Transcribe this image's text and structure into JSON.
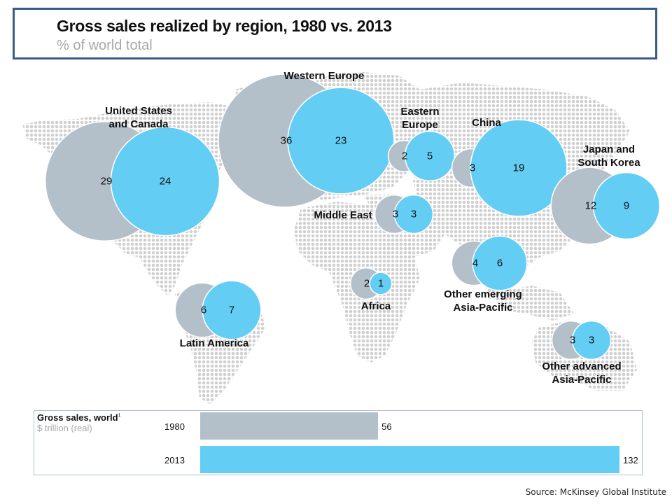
{
  "header": {
    "title": "Gross sales realized by region, 1980 vs. 2013",
    "subtitle": "% of world total"
  },
  "colors": {
    "year_1980": "#b3c0ca",
    "year_2013": "#64cdf4",
    "map_dots": "#d0d0d0",
    "title_border": "#3a5b8a"
  },
  "chart_data": [
    {
      "type": "bubble-map",
      "title": "Gross sales realized by region, 1980 vs. 2013",
      "subtitle": "% of world total",
      "series": [
        "1980",
        "2013"
      ],
      "regions": [
        {
          "name": "United States and Canada",
          "label_lines": [
            "United States",
            "and Canada"
          ],
          "v1980": 29,
          "v2013": 24
        },
        {
          "name": "Western Europe",
          "label_lines": [
            "Western Europe"
          ],
          "v1980": 36,
          "v2013": 23
        },
        {
          "name": "Eastern Europe",
          "label_lines": [
            "Eastern",
            "Europe"
          ],
          "v1980": 2,
          "v2013": 5
        },
        {
          "name": "China",
          "label_lines": [
            "China"
          ],
          "v1980": 3,
          "v2013": 19
        },
        {
          "name": "Japan and South Korea",
          "label_lines": [
            "Japan and",
            "South Korea"
          ],
          "v1980": 12,
          "v2013": 9
        },
        {
          "name": "Middle East",
          "label_lines": [
            "Middle East"
          ],
          "v1980": 3,
          "v2013": 3
        },
        {
          "name": "Latin America",
          "label_lines": [
            "Latin America"
          ],
          "v1980": 6,
          "v2013": 7
        },
        {
          "name": "Africa",
          "label_lines": [
            "Africa"
          ],
          "v1980": 2,
          "v2013": 1
        },
        {
          "name": "Other emerging Asia-Pacific",
          "label_lines": [
            "Other emerging",
            "Asia-Pacific"
          ],
          "v1980": 4,
          "v2013": 6
        },
        {
          "name": "Other advanced Asia-Pacific",
          "label_lines": [
            "Other advanced",
            "Asia-Pacific"
          ],
          "v1980": 3,
          "v2013": 3
        }
      ]
    },
    {
      "type": "bar",
      "title": "Gross sales, world",
      "title_marker": "1",
      "subtitle": "$ trillion (real)",
      "categories": [
        "1980",
        "2013"
      ],
      "values": [
        56,
        132
      ],
      "xlim": [
        0,
        132
      ]
    }
  ],
  "footer": {
    "source": "Source: McKinsey Global Institute"
  }
}
